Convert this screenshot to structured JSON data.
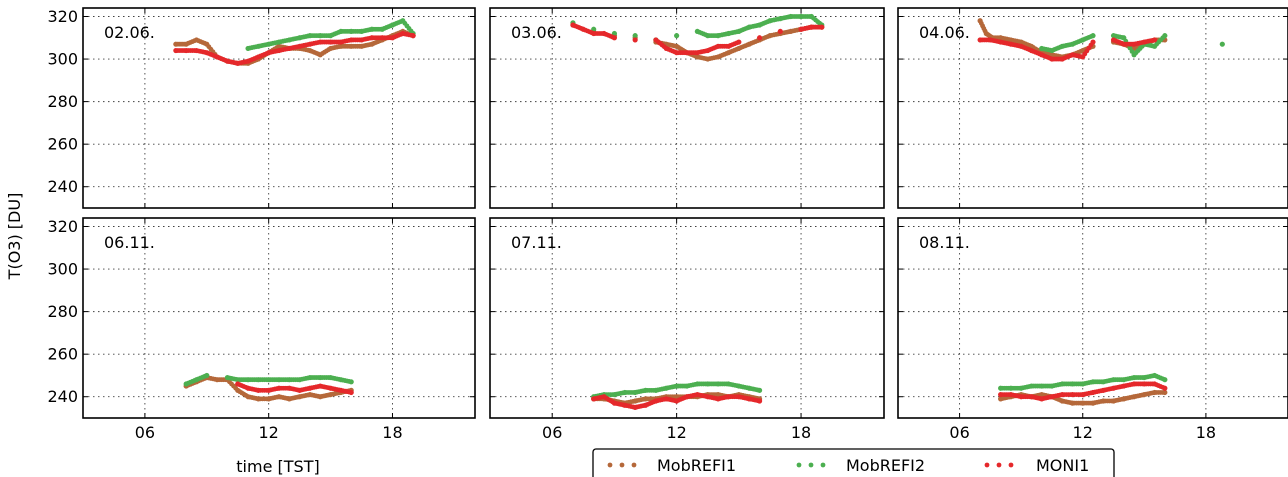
{
  "chart_data": {
    "type": "scatter",
    "ylabel": "T(O3) [DU]",
    "xlabel": "time [TST]",
    "xlim": [
      3,
      22
    ],
    "ylim": [
      230,
      324
    ],
    "xticks": [
      6,
      12,
      18
    ],
    "xtick_labels": [
      "06",
      "12",
      "18"
    ],
    "yticks": [
      240,
      260,
      280,
      300,
      320
    ],
    "grid": true,
    "legend_position": "bottom-center",
    "series_meta": [
      {
        "name": "MobREFI1",
        "color": "#b5683a"
      },
      {
        "name": "MobREFI2",
        "color": "#4caf50"
      },
      {
        "name": "MONI1",
        "color": "#e5282b"
      }
    ],
    "panels": [
      {
        "label": "02.06.",
        "series": [
          {
            "name": "MobREFI1",
            "x": [
              7.5,
              8.0,
              8.5,
              9.0,
              9.5,
              10.0,
              10.5,
              11.0,
              11.5,
              12.0,
              12.5,
              13.0,
              13.5,
              14.0,
              14.5,
              15.0,
              15.5,
              16.0,
              16.5,
              17.0,
              17.5,
              18.0,
              18.5,
              19.0
            ],
            "y": [
              307,
              307,
              309,
              307,
              301,
              299,
              298,
              298,
              300,
              303,
              306,
              305,
              305,
              304,
              302,
              305,
              306,
              306,
              306,
              307,
              309,
              311,
              313,
              311
            ]
          },
          {
            "name": "MobREFI2",
            "x": [
              11.0,
              11.5,
              12.0,
              12.5,
              13.0,
              13.5,
              14.0,
              14.5,
              15.0,
              15.5,
              16.0,
              16.5,
              17.0,
              17.5,
              18.0,
              18.5,
              19.0
            ],
            "y": [
              305,
              306,
              307,
              308,
              309,
              310,
              311,
              311,
              311,
              313,
              313,
              313,
              314,
              314,
              316,
              318,
              312
            ]
          },
          {
            "name": "MONI1",
            "x": [
              7.5,
              8.0,
              8.5,
              9.0,
              9.5,
              10.0,
              10.5,
              11.0,
              11.5,
              12.0,
              12.5,
              13.0,
              13.5,
              14.0,
              14.5,
              15.0,
              15.5,
              16.0,
              16.5,
              17.0,
              17.5,
              18.0,
              18.5,
              19.0
            ],
            "y": [
              304,
              304,
              304,
              303,
              301,
              299,
              298,
              299,
              301,
              303,
              304,
              305,
              306,
              307,
              308,
              308,
              308,
              309,
              309,
              310,
              310,
              310,
              312,
              311
            ]
          }
        ]
      },
      {
        "label": "03.06.",
        "series": [
          {
            "name": "MobREFI1",
            "x": [
              7.0,
              8.0,
              9.0,
              10.0,
              11.0,
              11.5,
              12.0,
              12.5,
              13.0,
              13.5,
              14.0,
              14.5,
              15.0,
              15.5,
              16.0,
              16.5,
              17.0,
              17.5,
              18.0,
              18.5,
              19.0
            ],
            "y": [
              316,
              313,
              311,
              310,
              308,
              307,
              306,
              303,
              301,
              300,
              301,
              303,
              305,
              307,
              309,
              311,
              312,
              313,
              314,
              315,
              315
            ]
          },
          {
            "name": "MobREFI2",
            "x": [
              7.0,
              8.0,
              9.0,
              10.0,
              11.0,
              12.0,
              13.0,
              13.5,
              14.0,
              14.5,
              15.0,
              15.5,
              16.0,
              16.5,
              17.0,
              17.5,
              18.0,
              18.5,
              19.0
            ],
            "y": [
              317,
              314,
              312,
              311,
              309,
              311,
              313,
              311,
              311,
              312,
              313,
              315,
              316,
              318,
              319,
              320,
              320,
              320,
              316
            ]
          },
          {
            "name": "MONI1",
            "x": [
              7.0,
              7.5,
              8.0,
              8.5,
              9.0,
              10.0,
              11.0,
              11.5,
              12.0,
              12.5,
              13.0,
              13.5,
              14.0,
              14.5,
              15.0,
              16.0,
              17.0,
              18.0,
              18.5,
              19.0
            ],
            "y": [
              316,
              314,
              312,
              312,
              310,
              309,
              309,
              305,
              303,
              303,
              303,
              304,
              306,
              306,
              308,
              310,
              313,
              314,
              315,
              315
            ]
          }
        ]
      },
      {
        "label": "04.06.",
        "series": [
          {
            "name": "MobREFI1",
            "x": [
              7.0,
              7.3,
              7.6,
              8.0,
              8.5,
              9.0,
              9.5,
              10.0,
              10.5,
              11.0,
              11.5,
              12.0,
              12.5,
              13.5,
              14.0,
              14.5,
              15.0,
              15.5,
              16.0
            ],
            "y": [
              318,
              312,
              310,
              310,
              309,
              308,
              306,
              303,
              302,
              301,
              302,
              304,
              306,
              308,
              307,
              305,
              307,
              309,
              309
            ]
          },
          {
            "name": "MobREFI2",
            "x": [
              10.0,
              10.5,
              11.0,
              11.5,
              12.0,
              12.5,
              13.5,
              14.0,
              14.5,
              15.0,
              15.5,
              16.0,
              18.8
            ],
            "y": [
              305,
              304,
              306,
              307,
              309,
              311,
              311,
              310,
              302,
              307,
              306,
              311,
              307
            ]
          },
          {
            "name": "MONI1",
            "x": [
              7.0,
              7.5,
              8.0,
              8.5,
              9.0,
              9.5,
              10.0,
              10.5,
              11.0,
              11.5,
              12.0,
              12.5,
              13.5,
              14.0,
              14.5,
              15.0,
              15.5
            ],
            "y": [
              309,
              309,
              308,
              307,
              306,
              304,
              302,
              300,
              300,
              302,
              301,
              308,
              309,
              307,
              307,
              308,
              309
            ]
          }
        ]
      },
      {
        "label": "06.11.",
        "series": [
          {
            "name": "MobREFI1",
            "x": [
              8.0,
              8.5,
              9.0,
              9.5,
              10.0,
              10.5,
              11.0,
              11.5,
              12.0,
              12.5,
              13.0,
              13.5,
              14.0,
              14.5,
              15.0,
              15.5,
              16.0
            ],
            "y": [
              245,
              247,
              249,
              248,
              248,
              243,
              240,
              239,
              239,
              240,
              239,
              240,
              241,
              240,
              241,
              242,
              243
            ]
          },
          {
            "name": "MobREFI2",
            "x": [
              8.0,
              8.5,
              9.0,
              10.0,
              10.5,
              11.0,
              11.5,
              12.0,
              12.5,
              13.0,
              13.5,
              14.0,
              14.5,
              15.0,
              15.5,
              16.0
            ],
            "y": [
              246,
              248,
              250,
              249,
              248,
              248,
              248,
              248,
              248,
              248,
              248,
              249,
              249,
              249,
              248,
              247
            ]
          },
          {
            "name": "MONI1",
            "x": [
              10.5,
              11.0,
              11.5,
              12.0,
              12.5,
              13.0,
              13.5,
              14.0,
              14.5,
              15.0,
              15.5,
              16.0
            ],
            "y": [
              246,
              244,
              243,
              243,
              244,
              244,
              243,
              244,
              245,
              244,
              243,
              242
            ]
          }
        ]
      },
      {
        "label": "07.11.",
        "series": [
          {
            "name": "MobREFI1",
            "x": [
              8.0,
              8.5,
              9.0,
              9.5,
              10.0,
              10.5,
              11.0,
              11.5,
              12.0,
              12.5,
              13.0,
              13.5,
              14.0,
              14.5,
              15.0,
              15.5,
              16.0
            ],
            "y": [
              239,
              239,
              238,
              237,
              238,
              239,
              239,
              240,
              240,
              240,
              240,
              241,
              241,
              240,
              241,
              240,
              239
            ]
          },
          {
            "name": "MobREFI2",
            "x": [
              8.0,
              8.5,
              9.0,
              9.5,
              10.0,
              10.5,
              11.0,
              11.5,
              12.0,
              12.5,
              13.0,
              13.5,
              14.0,
              14.5,
              15.0,
              15.5,
              16.0
            ],
            "y": [
              240,
              241,
              241,
              242,
              242,
              243,
              243,
              244,
              245,
              245,
              246,
              246,
              246,
              246,
              245,
              244,
              243
            ]
          },
          {
            "name": "MONI1",
            "x": [
              8.0,
              8.5,
              9.0,
              9.5,
              10.0,
              10.5,
              11.0,
              11.5,
              12.0,
              12.5,
              13.0,
              13.5,
              14.0,
              14.5,
              15.0,
              15.5,
              16.0
            ],
            "y": [
              239,
              240,
              237,
              236,
              235,
              236,
              238,
              239,
              238,
              240,
              241,
              240,
              239,
              240,
              240,
              239,
              238
            ]
          }
        ]
      },
      {
        "label": "08.11.",
        "series": [
          {
            "name": "MobREFI1",
            "x": [
              8.0,
              8.5,
              9.0,
              9.5,
              10.0,
              10.5,
              11.0,
              11.5,
              12.0,
              12.5,
              13.0,
              13.5,
              14.0,
              14.5,
              15.0,
              15.5,
              16.0
            ],
            "y": [
              239,
              240,
              241,
              240,
              241,
              240,
              238,
              237,
              237,
              237,
              238,
              238,
              239,
              240,
              241,
              242,
              242
            ]
          },
          {
            "name": "MobREFI2",
            "x": [
              8.0,
              8.5,
              9.0,
              9.5,
              10.0,
              10.5,
              11.0,
              11.5,
              12.0,
              12.5,
              13.0,
              13.5,
              14.0,
              14.5,
              15.0,
              15.5,
              16.0
            ],
            "y": [
              244,
              244,
              244,
              245,
              245,
              245,
              246,
              246,
              246,
              247,
              247,
              248,
              248,
              249,
              249,
              250,
              248
            ]
          },
          {
            "name": "MONI1",
            "x": [
              8.0,
              8.5,
              9.0,
              9.5,
              10.0,
              10.5,
              11.0,
              11.5,
              12.0,
              12.5,
              13.0,
              13.5,
              14.0,
              14.5,
              15.0,
              15.5,
              16.0
            ],
            "y": [
              241,
              241,
              240,
              240,
              239,
              240,
              241,
              241,
              241,
              242,
              243,
              244,
              245,
              246,
              246,
              246,
              244
            ]
          }
        ]
      }
    ]
  }
}
